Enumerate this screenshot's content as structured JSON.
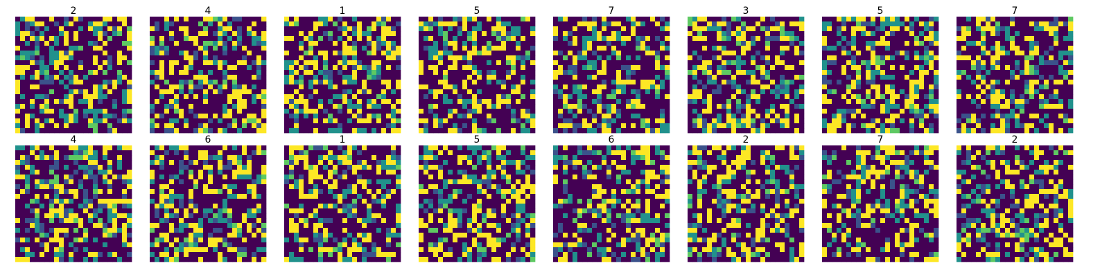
{
  "chart_data": {
    "type": "heatmap",
    "layout": {
      "rows": 2,
      "columns": 8
    },
    "grid_size": [
      24,
      24
    ],
    "colormap": "viridis",
    "colors": [
      "#440154",
      "#3b528b",
      "#21918c",
      "#5ec962",
      "#fde725"
    ],
    "axes_visible": false,
    "grid": false,
    "cell_values_note": "",
    "panels": [
      {
        "title": "2"
      },
      {
        "title": "4"
      },
      {
        "title": "1"
      },
      {
        "title": "5"
      },
      {
        "title": "7"
      },
      {
        "title": "3"
      },
      {
        "title": "5"
      },
      {
        "title": "7"
      },
      {
        "title": "4"
      },
      {
        "title": "6"
      },
      {
        "title": "1"
      },
      {
        "title": "5"
      },
      {
        "title": "6"
      },
      {
        "title": "2"
      },
      {
        "title": "7"
      },
      {
        "title": "2"
      }
    ]
  }
}
